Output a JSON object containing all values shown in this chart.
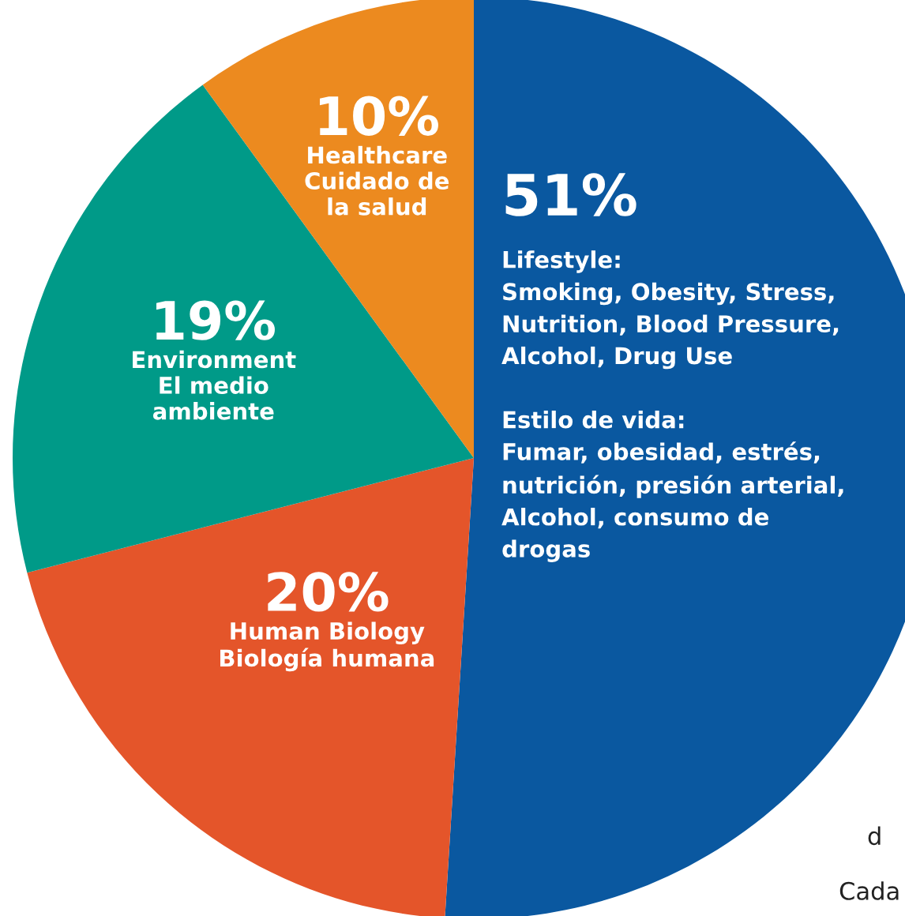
{
  "chart_data": {
    "type": "pie",
    "categories": [
      "Lifestyle:\nSmoking, Obesity, Stress,\nNutrition, Blood Pressure,\nAlcohol, Drug Use\n\nEstilo de vida:\nFumar, obesidad, estrés,\nnutrición, presión arterial,\nAlcohol, consumo de\ndrogas",
      "Human Biology\nBiología humana",
      "Environment\nEl medio\nambiente",
      "Healthcare\nCuidado de\nla salud"
    ],
    "values": [
      51,
      20,
      19,
      10
    ],
    "value_labels": [
      "51%",
      "20%",
      "19%",
      "10%"
    ],
    "colors": [
      "#0a58a0",
      "#e4552a",
      "#009a88",
      "#ec8a1f"
    ],
    "annotations": [
      "d",
      "Cada"
    ]
  }
}
